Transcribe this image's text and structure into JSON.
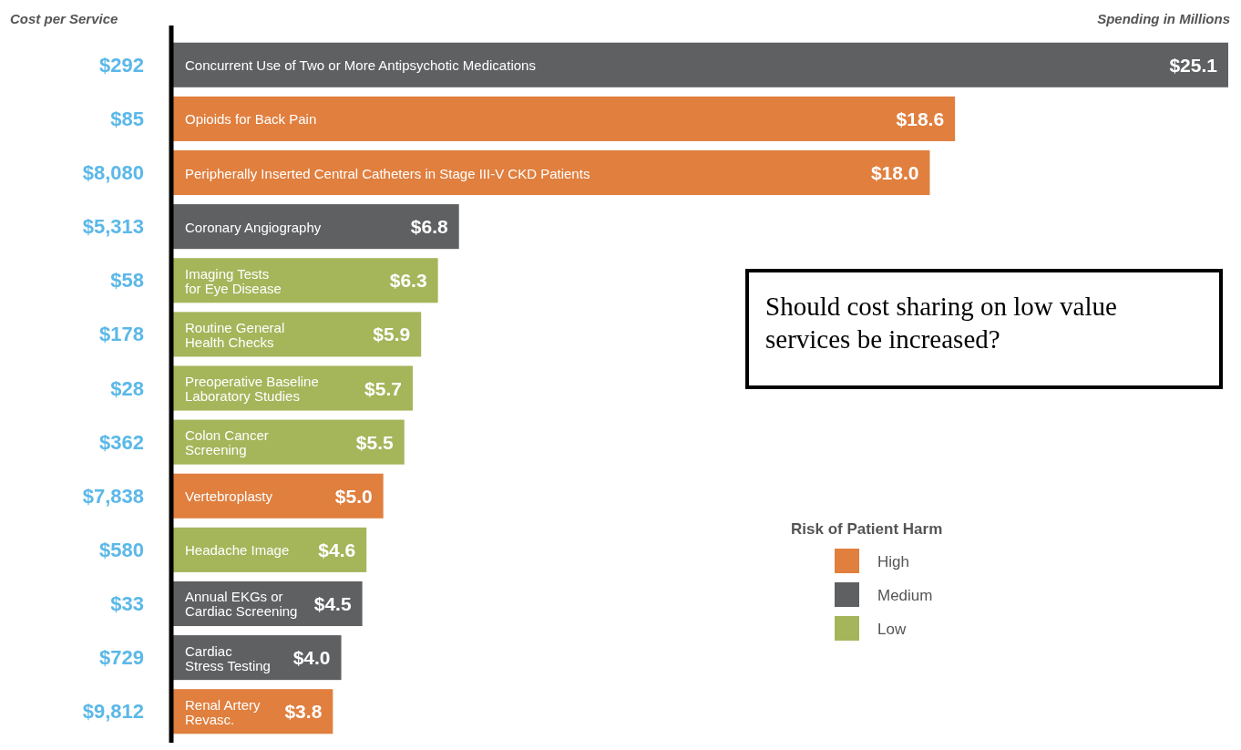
{
  "chart_data": {
    "type": "bar",
    "orientation": "horizontal",
    "ylabel": "Cost per Service",
    "xlabel": "Spending in Millions",
    "legend_title": "Risk of Patient Harm",
    "legend": "right",
    "categories": [
      "Concurrent Use of Two or More Antipsychotic Medications",
      "Opioids for Back Pain",
      "Peripherally Inserted Central Catheters in Stage III-V CKD Patients",
      "Coronary Angiography",
      "Imaging Tests for Eye Disease",
      "Routine General Health Checks",
      "Preoperative Baseline Laboratory Studies",
      "Colon Cancer Screening",
      "Vertebroplasty",
      "Headache Image",
      "Annual EKGs or Cardiac Screening",
      "Cardiac Stress Testing",
      "Renal Artery Revasc."
    ],
    "series": [
      {
        "name": "High",
        "color": "#e07f3e",
        "values": [
          null,
          18.6,
          18.0,
          null,
          null,
          null,
          null,
          null,
          5.0,
          null,
          null,
          null,
          3.8
        ],
        "value_labels": [
          null,
          "$18.6",
          "$18.0",
          null,
          null,
          null,
          null,
          null,
          "$5.0",
          null,
          null,
          null,
          "$3.8"
        ]
      },
      {
        "name": "Medium",
        "color": "#5f6062",
        "values": [
          25.1,
          null,
          null,
          6.8,
          null,
          null,
          null,
          null,
          null,
          null,
          4.5,
          4.0,
          null
        ],
        "value_labels": [
          "$25.1",
          null,
          null,
          "$6.8",
          null,
          null,
          null,
          null,
          null,
          null,
          "$4.5",
          "$4.0",
          null
        ]
      },
      {
        "name": "Low",
        "color": "#a5b55a",
        "values": [
          null,
          null,
          null,
          null,
          6.3,
          5.9,
          5.7,
          5.5,
          null,
          4.6,
          null,
          null,
          null
        ],
        "value_labels": [
          null,
          null,
          null,
          null,
          "$6.3",
          "$5.9",
          "$5.7",
          "$5.5",
          null,
          "$4.6",
          null,
          null,
          null
        ]
      }
    ],
    "annotations": [
      "$292",
      "$85",
      "$8,080",
      "$5,313",
      "$58",
      "$178",
      "$28",
      "$362",
      "$7,838",
      "$580",
      "$33",
      "$729",
      "$9,812",
      "Should cost sharing on low value services be increased?"
    ]
  }
}
